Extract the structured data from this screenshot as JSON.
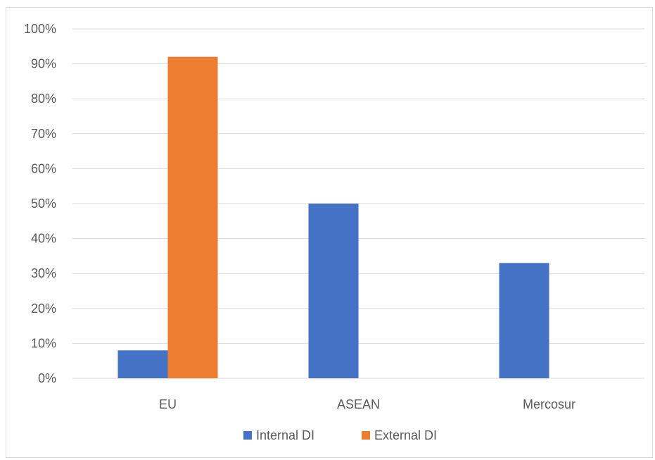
{
  "chart_data": {
    "type": "bar",
    "categories": [
      "EU",
      "ASEAN",
      "Mercosur"
    ],
    "series": [
      {
        "name": "Internal DI",
        "values": [
          0.08,
          0.5,
          0.33
        ],
        "color": "#4472c4"
      },
      {
        "name": "External DI",
        "values": [
          0.92,
          0.0,
          0.0
        ],
        "color": "#ed7d31"
      }
    ],
    "y_ticks": [
      "0%",
      "10%",
      "20%",
      "30%",
      "40%",
      "50%",
      "60%",
      "70%",
      "80%",
      "90%",
      "100%"
    ],
    "ylim": [
      0,
      1
    ],
    "grid": true,
    "gridline_color": "#d9d9d9",
    "axis_label_color": "#595959",
    "legend_position": "bottom"
  }
}
